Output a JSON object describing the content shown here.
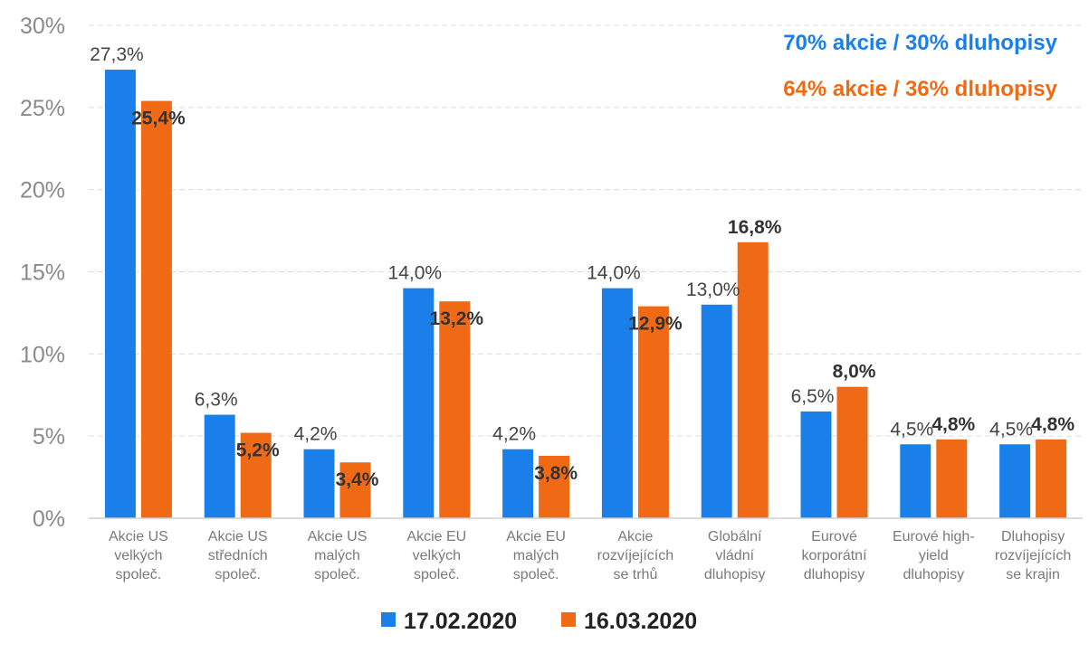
{
  "chart_data": {
    "type": "bar",
    "categories": [
      [
        "Akcie US",
        "velkých",
        "společ."
      ],
      [
        "Akcie US",
        "středních",
        "společ."
      ],
      [
        "Akcie US",
        "malých",
        "společ."
      ],
      [
        "Akcie EU",
        "velkých",
        "společ."
      ],
      [
        "Akcie EU",
        "malých",
        "společ."
      ],
      [
        "Akcie",
        "rozvíjejících",
        "se trhů"
      ],
      [
        "Globální",
        "vládní",
        "dluhopisy"
      ],
      [
        "Eurové",
        "korporátní",
        "dluhopisy"
      ],
      [
        "Eurové high-",
        "yield",
        "dluhopisy"
      ],
      [
        "Dluhopisy",
        "rozvíjejících",
        "se krajin"
      ]
    ],
    "series": [
      {
        "name": "17.02.2020",
        "color": "#1a7fe8",
        "values": [
          27.3,
          6.3,
          4.2,
          14.0,
          4.2,
          14.0,
          13.0,
          6.5,
          4.5,
          4.5
        ],
        "labels": [
          "27,3%",
          "6,3%",
          "4,2%",
          "14,0%",
          "4,2%",
          "14,0%",
          "13,0%",
          "6,5%",
          "4,5%",
          "4,5%"
        ]
      },
      {
        "name": "16.03.2020",
        "color": "#f06a16",
        "values": [
          25.4,
          5.2,
          3.4,
          13.2,
          3.8,
          12.9,
          16.8,
          8.0,
          4.8,
          4.8
        ],
        "labels": [
          "25,4%",
          "5,2%",
          "3,4%",
          "13,2%",
          "3,8%",
          "12,9%",
          "16,8%",
          "8,0%",
          "4,8%",
          "4,8%"
        ]
      }
    ],
    "ylim": [
      0,
      30
    ],
    "yticks": [
      0,
      5,
      10,
      15,
      20,
      25,
      30
    ],
    "ytick_labels": [
      "0%",
      "5%",
      "10%",
      "15%",
      "20%",
      "25%",
      "30%"
    ],
    "grid": true,
    "legend_position": "bottom",
    "annotations": [
      {
        "text": "70% akcie / 30% dluhopisy",
        "color": "#1a7fe8"
      },
      {
        "text": "64% akcie / 36% dluhopisy",
        "color": "#f06a16"
      }
    ],
    "title": "",
    "xlabel": "",
    "ylabel": ""
  }
}
